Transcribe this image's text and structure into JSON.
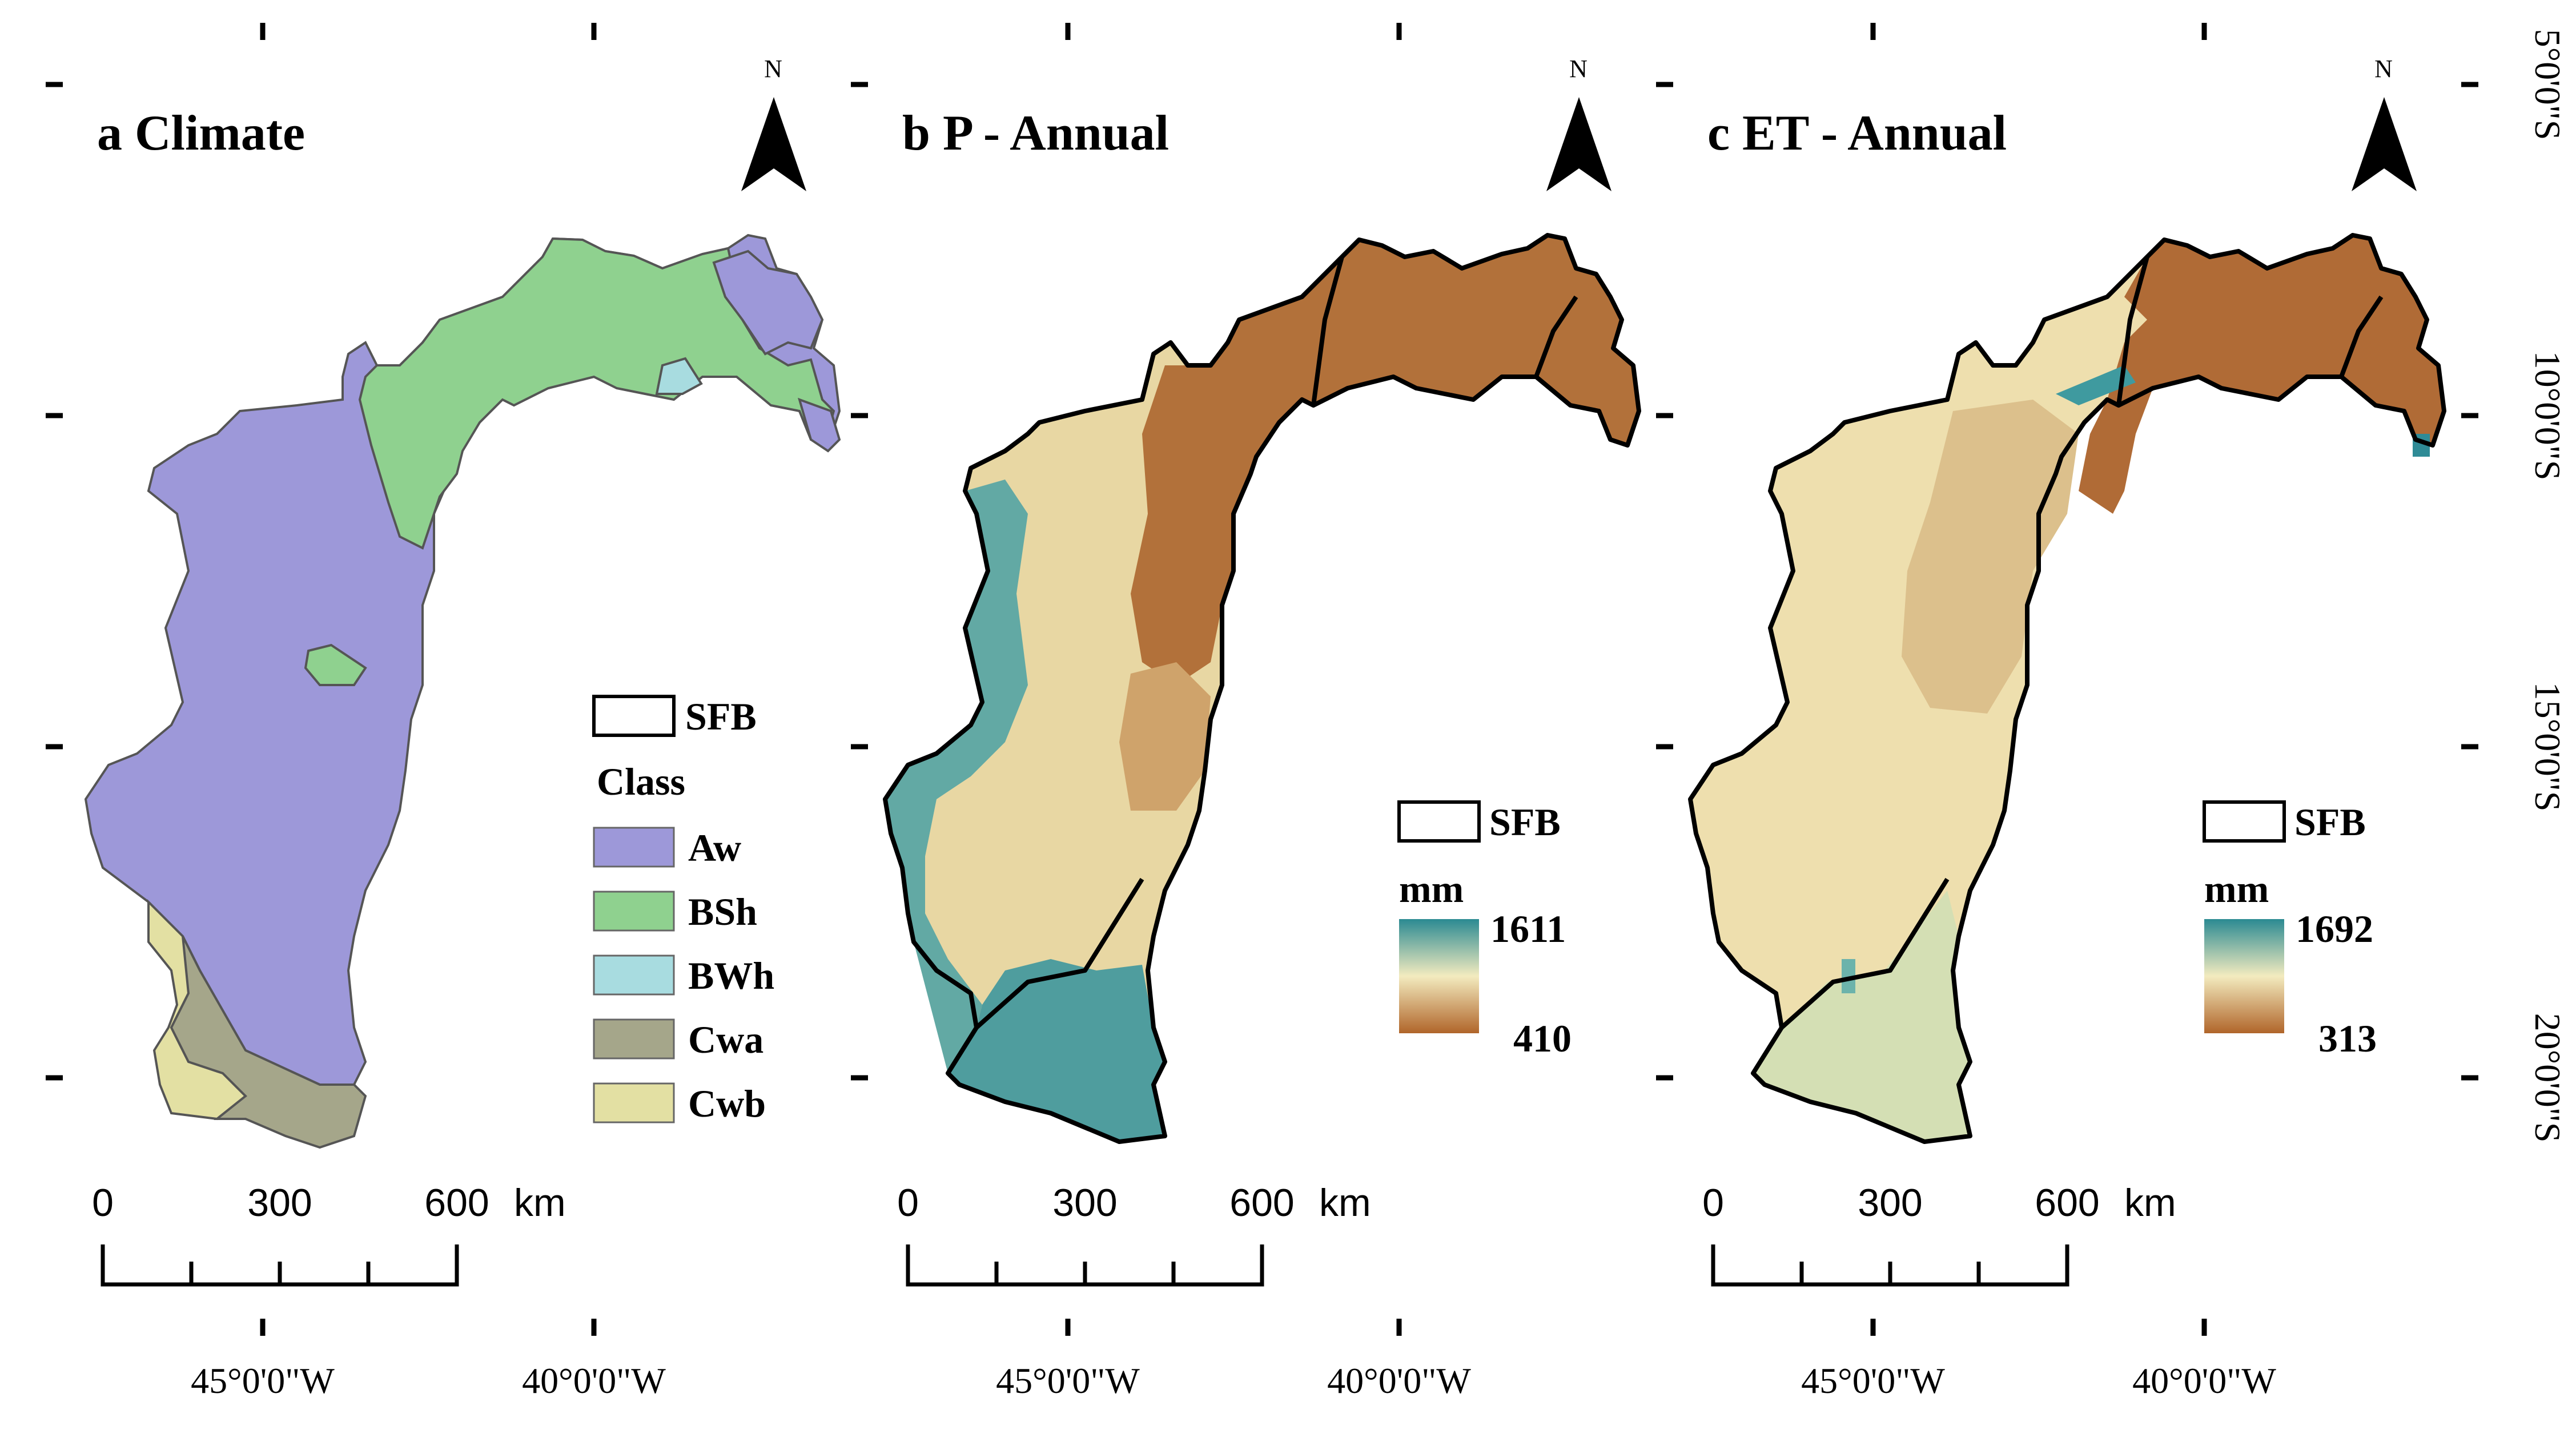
{
  "panels": [
    {
      "title": "a  Climate",
      "north_label": "N",
      "legend": {
        "boundary_label": "SFB",
        "class_heading": "Class",
        "classes": [
          {
            "label": "Aw",
            "color": "#9d98d9"
          },
          {
            "label": "BSh",
            "color": "#8fd18f"
          },
          {
            "label": "BWh",
            "color": "#a8dce0"
          },
          {
            "label": "Cwa",
            "color": "#a5a68a"
          },
          {
            "label": "Cwb",
            "color": "#e3e0a3"
          }
        ]
      },
      "scale": {
        "labels": [
          "0",
          "300",
          "600"
        ],
        "unit": "km"
      }
    },
    {
      "title": "b  P - Annual",
      "north_label": "N",
      "legend": {
        "boundary_label": "SFB",
        "unit": "mm",
        "max": "1611",
        "min": "410",
        "colors": [
          "#b0652a",
          "#f3ebbf",
          "#2b8a92"
        ]
      },
      "scale": {
        "labels": [
          "0",
          "300",
          "600"
        ],
        "unit": "km"
      }
    },
    {
      "title": "c  ET - Annual",
      "north_label": "N",
      "legend": {
        "boundary_label": "SFB",
        "unit": "mm",
        "max": "1692",
        "min": "313",
        "colors": [
          "#b0652a",
          "#f3ebbf",
          "#2b8a92"
        ]
      },
      "scale": {
        "labels": [
          "0",
          "300",
          "600"
        ],
        "unit": "km"
      }
    }
  ],
  "longitude_labels": [
    "45°0'0\"W",
    "40°0'0\"W"
  ],
  "latitude_labels": [
    "5°0'0\"S",
    "10°0'0\"S",
    "15°0'0\"S",
    "20°0'0\"S"
  ]
}
